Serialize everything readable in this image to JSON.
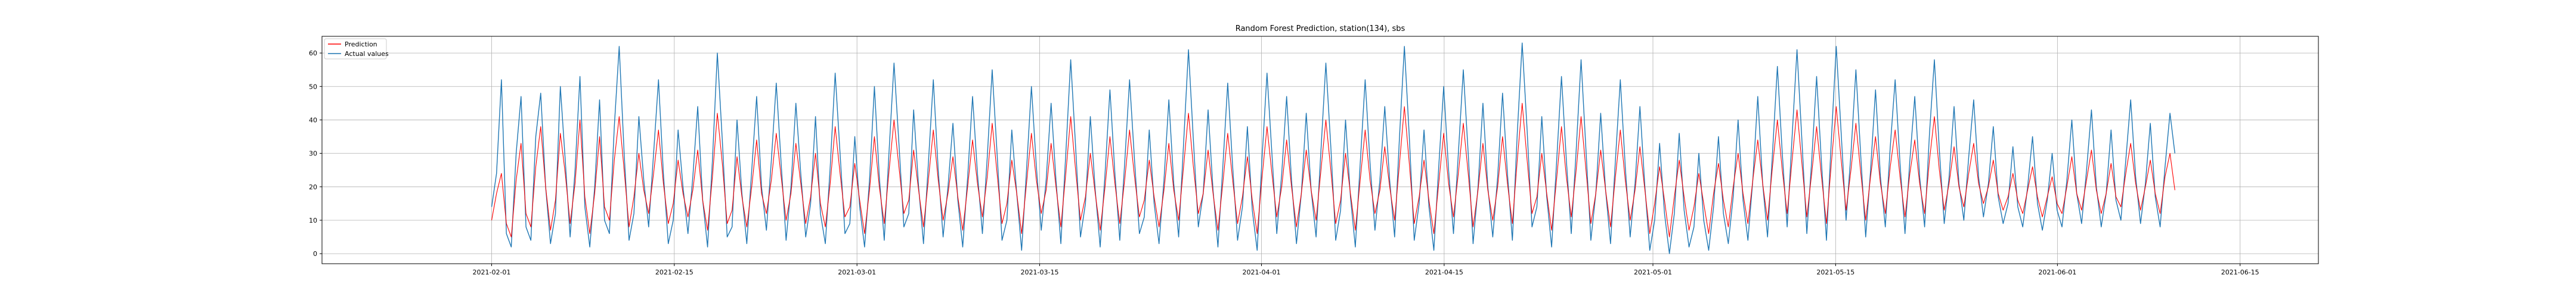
{
  "chart_data": {
    "type": "line",
    "title": "Random Forest Prediction, station(134), sbs",
    "xlabel": "",
    "ylabel": "",
    "x_axis": {
      "kind": "date",
      "xlim": [
        "2021-01-19",
        "2021-06-21"
      ],
      "tick_labels": [
        "2021-02-01",
        "2021-02-15",
        "2021-03-01",
        "2021-03-15",
        "2021-04-01",
        "2021-04-15",
        "2021-05-01",
        "2021-05-15",
        "2021-06-01",
        "2021-06-15"
      ]
    },
    "y_axis": {
      "ylim": [
        -3,
        65
      ],
      "ticks": [
        0,
        10,
        20,
        30,
        40,
        50,
        60
      ]
    },
    "grid": true,
    "legend": {
      "position": "upper-left",
      "entries": [
        "Prediction",
        "Actual values"
      ]
    },
    "series": [
      {
        "name": "Prediction",
        "color": "#ff0000",
        "x_start": "2021-02-01",
        "x_end": "2021-06-10",
        "step": "6h",
        "values": [
          10,
          18,
          24,
          9,
          5,
          22,
          33,
          12,
          8,
          26,
          38,
          20,
          7,
          16,
          36,
          24,
          9,
          21,
          40,
          17,
          6,
          18,
          35,
          14,
          10,
          28,
          41,
          25,
          8,
          17,
          30,
          19,
          12,
          24,
          37,
          21,
          9,
          15,
          28,
          18,
          11,
          19,
          31,
          16,
          7,
          23,
          42,
          27,
          9,
          13,
          29,
          17,
          8,
          20,
          34,
          18,
          12,
          22,
          36,
          23,
          10,
          18,
          33,
          21,
          9,
          17,
          30,
          15,
          8,
          21,
          38,
          24,
          11,
          14,
          27,
          16,
          6,
          19,
          35,
          20,
          9,
          25,
          40,
          26,
          12,
          16,
          31,
          19,
          8,
          22,
          37,
          22,
          10,
          18,
          29,
          17,
          7,
          20,
          34,
          21,
          11,
          23,
          39,
          24,
          9,
          15,
          28,
          18,
          6,
          21,
          36,
          22,
          12,
          19,
          33,
          20,
          8,
          24,
          41,
          25,
          10,
          17,
          30,
          18,
          7,
          20,
          35,
          21,
          9,
          22,
          37,
          23,
          11,
          16,
          28,
          17,
          8,
          19,
          33,
          19,
          10,
          26,
          42,
          26,
          12,
          18,
          31,
          18,
          7,
          21,
          36,
          22,
          9,
          17,
          29,
          16,
          6,
          23,
          38,
          24,
          11,
          20,
          34,
          20,
          8,
          18,
          31,
          19,
          10,
          25,
          40,
          25,
          9,
          16,
          30,
          18,
          7,
          22,
          37,
          22,
          12,
          19,
          32,
          20,
          10,
          27,
          44,
          27,
          9,
          17,
          28,
          16,
          6,
          21,
          36,
          21,
          11,
          24,
          39,
          24,
          8,
          19,
          33,
          19,
          10,
          20,
          35,
          21,
          9,
          28,
          45,
          28,
          12,
          17,
          30,
          18,
          7,
          22,
          38,
          23,
          11,
          25,
          41,
          25,
          9,
          18,
          31,
          19,
          8,
          23,
          37,
          22,
          10,
          19,
          32,
          19,
          6,
          15,
          26,
          16,
          5,
          17,
          28,
          17,
          7,
          14,
          24,
          15,
          6,
          18,
          27,
          16,
          8,
          20,
          30,
          18,
          9,
          22,
          34,
          21,
          10,
          26,
          40,
          25,
          12,
          28,
          43,
          27,
          11,
          24,
          38,
          23,
          9,
          27,
          44,
          28,
          13,
          25,
          39,
          24,
          10,
          23,
          35,
          21,
          12,
          26,
          37,
          23,
          11,
          24,
          34,
          21,
          12,
          28,
          41,
          25,
          13,
          21,
          32,
          20,
          14,
          24,
          33,
          21,
          15,
          20,
          28,
          18,
          13,
          17,
          24,
          16,
          12,
          19,
          26,
          17,
          11,
          17,
          23,
          15,
          12,
          20,
          29,
          18,
          13,
          22,
          31,
          19,
          12,
          18,
          27,
          17,
          14,
          24,
          33,
          21,
          13,
          20,
          28,
          18,
          12,
          23,
          30,
          19
        ],
        "note_values": ""
      },
      {
        "name": "Actual values",
        "color": "#1f77b4",
        "x_start": "2021-02-01",
        "x_end": "2021-06-10",
        "step": "6h",
        "values": [
          14,
          24,
          52,
          6,
          2,
          30,
          47,
          8,
          4,
          35,
          48,
          20,
          3,
          12,
          50,
          28,
          5,
          25,
          53,
          14,
          2,
          20,
          46,
          10,
          6,
          38,
          62,
          30,
          4,
          12,
          41,
          22,
          8,
          30,
          52,
          24,
          3,
          10,
          37,
          20,
          6,
          23,
          44,
          16,
          2,
          28,
          60,
          34,
          5,
          8,
          40,
          18,
          3,
          25,
          47,
          20,
          7,
          28,
          51,
          27,
          4,
          20,
          45,
          24,
          5,
          15,
          41,
          12,
          3,
          26,
          54,
          30,
          6,
          9,
          35,
          14,
          2,
          22,
          50,
          23,
          4,
          31,
          57,
          33,
          8,
          12,
          43,
          20,
          3,
          27,
          52,
          25,
          5,
          20,
          39,
          16,
          2,
          23,
          47,
          24,
          6,
          29,
          55,
          30,
          4,
          10,
          37,
          18,
          1,
          25,
          50,
          26,
          7,
          22,
          45,
          22,
          3,
          30,
          58,
          32,
          5,
          15,
          41,
          19,
          2,
          24,
          49,
          24,
          4,
          27,
          52,
          28,
          6,
          11,
          37,
          15,
          3,
          22,
          46,
          21,
          5,
          33,
          61,
          34,
          8,
          18,
          43,
          19,
          2,
          26,
          51,
          26,
          4,
          14,
          38,
          13,
          1,
          29,
          54,
          30,
          6,
          24,
          47,
          22,
          3,
          18,
          42,
          19,
          5,
          31,
          57,
          32,
          4,
          13,
          40,
          17,
          2,
          27,
          52,
          27,
          7,
          22,
          44,
          22,
          5,
          35,
          62,
          35,
          4,
          15,
          37,
          14,
          1,
          26,
          50,
          25,
          6,
          30,
          55,
          30,
          3,
          20,
          45,
          20,
          5,
          23,
          48,
          24,
          4,
          36,
          63,
          37,
          8,
          14,
          41,
          17,
          2,
          27,
          53,
          28,
          6,
          31,
          58,
          31,
          4,
          18,
          42,
          19,
          3,
          28,
          52,
          26,
          5,
          21,
          44,
          20,
          1,
          10,
          33,
          12,
          0,
          12,
          36,
          13,
          2,
          8,
          30,
          10,
          1,
          14,
          35,
          12,
          3,
          17,
          40,
          16,
          4,
          22,
          47,
          21,
          5,
          30,
          56,
          30,
          8,
          35,
          61,
          34,
          6,
          28,
          53,
          27,
          4,
          34,
          62,
          36,
          10,
          30,
          55,
          29,
          5,
          25,
          49,
          23,
          8,
          32,
          52,
          27,
          6,
          28,
          47,
          23,
          8,
          36,
          58,
          31,
          9,
          23,
          44,
          21,
          10,
          29,
          46,
          23,
          11,
          21,
          38,
          17,
          9,
          15,
          32,
          14,
          8,
          20,
          35,
          15,
          7,
          16,
          30,
          13,
          8,
          22,
          40,
          18,
          9,
          25,
          43,
          20,
          8,
          18,
          37,
          16,
          10,
          28,
          46,
          23,
          9,
          21,
          39,
          17,
          8,
          26,
          42,
          30
        ]
      }
    ]
  }
}
